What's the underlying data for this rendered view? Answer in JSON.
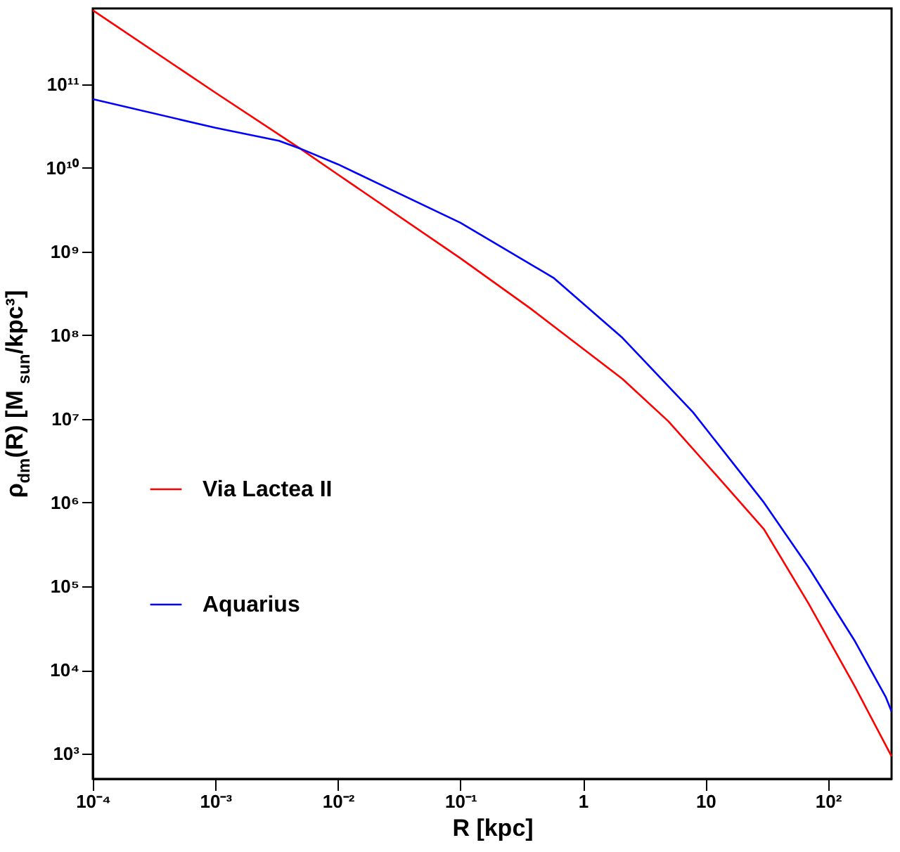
{
  "chart_data": {
    "type": "line",
    "xlabel": "R  [kpc]",
    "ylabel": "ρ$_{dm}$(R)  [M$_{sun}$/kpc³]",
    "log": "xy",
    "xlim": [
      0.0001,
      330
    ],
    "ylim": [
      500,
      800000000000
    ],
    "xticks": [
      {
        "value": 0.0001,
        "label": "10⁻⁴"
      },
      {
        "value": 0.001,
        "label": "10⁻³"
      },
      {
        "value": 0.01,
        "label": "10⁻²"
      },
      {
        "value": 0.1,
        "label": "10⁻¹"
      },
      1,
      10,
      {
        "value": 100,
        "label": "10²"
      }
    ],
    "yticks": [
      {
        "value": 1000,
        "label": "10³"
      },
      {
        "value": 10000,
        "label": "10⁴"
      },
      {
        "value": 100000,
        "label": "10⁵"
      },
      {
        "value": 1000000,
        "label": "10⁶"
      },
      {
        "value": 10000000,
        "label": "10⁷"
      },
      {
        "value": 100000000,
        "label": "10⁸"
      },
      {
        "value": 1000000000,
        "label": "10⁹"
      },
      {
        "value": 10000000000,
        "label": "10¹⁰"
      },
      {
        "value": 100000000000,
        "label": "10¹¹"
      }
    ],
    "grid": false,
    "legend": "left",
    "line_style": "solid",
    "marker": "none",
    "series": [
      {
        "name": "Via Lactea II",
        "color": "#ff0000",
        "x": [
          0.0001,
          0.001,
          0.0049,
          0.01,
          0.1,
          0.37,
          1,
          2.1,
          5.0,
          12,
          30,
          69,
          166,
          330
        ],
        "values": [
          760000000000,
          79000000000,
          17000000000,
          8300000000,
          830000000,
          210000000,
          69000000,
          30000000,
          9300000,
          2200000,
          480000,
          63000,
          6300,
          930
        ]
      },
      {
        "name": "Aquarius",
        "color": "#0000ff",
        "x": [
          0.0001,
          0.001,
          0.0033,
          0.0049,
          0.01,
          0.1,
          0.58,
          2.1,
          7.9,
          30,
          69,
          166,
          295,
          330
        ],
        "values": [
          66000000000,
          30000000000,
          21000000000,
          17000000000,
          11000000000,
          2200000000,
          480000000,
          93000000,
          12000000,
          1000000,
          170000,
          22000,
          4800,
          3200
        ]
      }
    ]
  }
}
